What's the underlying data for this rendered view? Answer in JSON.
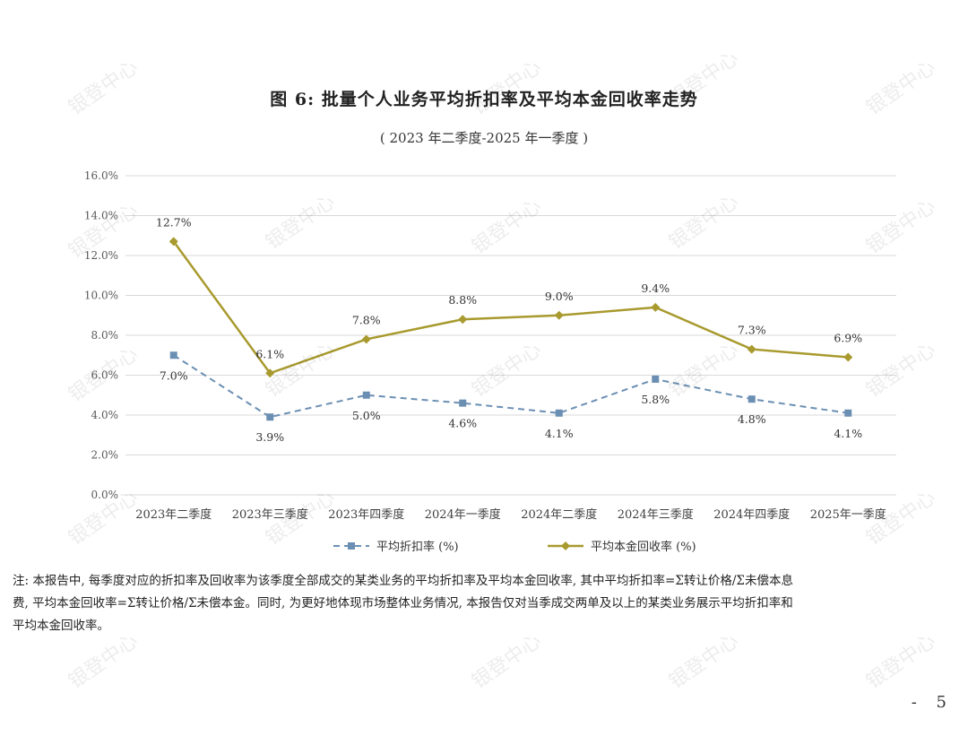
{
  "title": "图 6: 批量个人业务平均折扣率及平均本金回收率走势",
  "subtitle": "( 2023 年二季度-2025 年一季度 )",
  "watermark": "银登中心",
  "note": {
    "line1": "注: 本报告中, 每季度对应的折扣率及回收率为该季度全部成交的某类业务的平均折扣率及平均本金回收率, 其中平均折扣率=Σ转让价格/Σ未偿本息",
    "line2": "费, 平均本金回收率=Σ转让价格/Σ未偿本金。同时, 为更好地体现市场整体业务情况, 本报告仅对当季成交两单及以上的某类业务展示平均折扣率和",
    "line3": "平均本金回收率。"
  },
  "page_number": "- 5",
  "colors": {
    "discount": "#6b8fb3",
    "recovery": "#a89a2e",
    "grid": "#d9d9d9",
    "axis_text": "#595959"
  },
  "chart_data": {
    "type": "line",
    "title": "图 6: 批量个人业务平均折扣率及平均本金回收率走势",
    "subtitle": "( 2023 年二季度-2025 年一季度 )",
    "categories": [
      "2023年二季度",
      "2023年三季度",
      "2023年四季度",
      "2024年一季度",
      "2024年二季度",
      "2024年三季度",
      "2024年四季度",
      "2025年一季度"
    ],
    "y_ticks": [
      "0.0%",
      "2.0%",
      "4.0%",
      "6.0%",
      "8.0%",
      "10.0%",
      "12.0%",
      "14.0%",
      "16.0%"
    ],
    "ylim": [
      0,
      16
    ],
    "grid": true,
    "legend_position": "bottom",
    "series": [
      {
        "name": "平均折扣率 (%)",
        "style": "dashed",
        "marker": "square",
        "values": [
          7.0,
          3.9,
          5.0,
          4.6,
          4.1,
          5.8,
          4.8,
          4.1
        ],
        "labels": [
          "7.0%",
          "3.9%",
          "5.0%",
          "4.6%",
          "4.1%",
          "5.8%",
          "4.8%",
          "4.1%"
        ]
      },
      {
        "name": "平均本金回收率 (%)",
        "style": "solid",
        "marker": "diamond",
        "values": [
          12.7,
          6.1,
          7.8,
          8.8,
          9.0,
          9.4,
          7.3,
          6.9
        ],
        "labels": [
          "12.7%",
          "6.1%",
          "7.8%",
          "8.8%",
          "9.0%",
          "9.4%",
          "7.3%",
          "6.9%"
        ]
      }
    ]
  }
}
